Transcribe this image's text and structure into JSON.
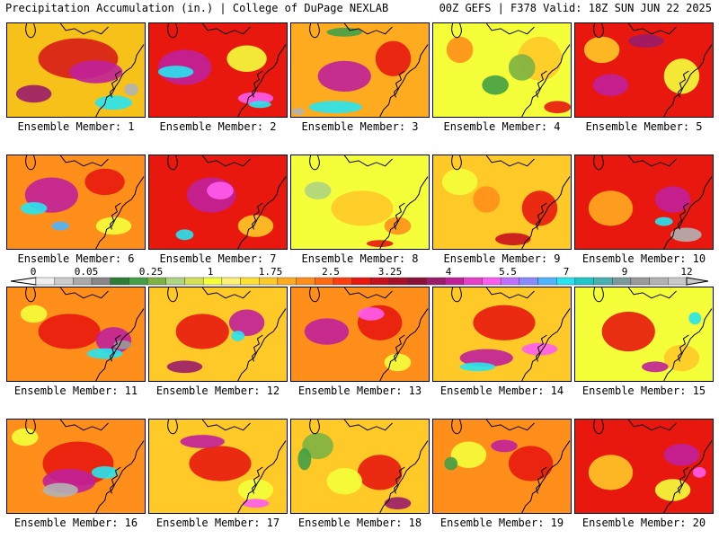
{
  "header": {
    "left": "Precipitation Accumulation (in.) | College of DuPage NEXLAB",
    "right": "00Z GEFS | F378 Valid: 18Z SUN JUN 22 2025"
  },
  "colorbar": {
    "labels": [
      "0",
      "0.05",
      "0.25",
      "1",
      "1.75",
      "2.5",
      "3.25",
      "4",
      "5.5",
      "7",
      "9",
      "12"
    ],
    "colors": [
      "#eeeeee",
      "#cccccc",
      "#aaaaaa",
      "#888888",
      "#2e7d32",
      "#43a047",
      "#7cb342",
      "#aed581",
      "#d4e157",
      "#f4ff3a",
      "#fff176",
      "#ffe033",
      "#ffc928",
      "#ffab1f",
      "#ff8f1a",
      "#ff6a13",
      "#ff3d10",
      "#e8180e",
      "#c8101c",
      "#a8102a",
      "#8a1038",
      "#9a1c6a",
      "#c0209a",
      "#e640c6",
      "#ff5cf0",
      "#c070ff",
      "#8a8aff",
      "#4fb4ff",
      "#27e4f0",
      "#1fc8c8",
      "#47b0b0",
      "#7a9a9a",
      "#9a9a9a",
      "#b2b2b2",
      "#c8c8c8"
    ]
  },
  "members": [
    {
      "caption": "Ensemble Member: 1",
      "base": "#f6c21a",
      "blobs": [
        [
          "#d81c18",
          80,
          40,
          90,
          46
        ],
        [
          "#c0209a",
          100,
          55,
          60,
          26
        ],
        [
          "#27e4f0",
          120,
          90,
          42,
          16
        ],
        [
          "#b2b2b2",
          140,
          75,
          16,
          14
        ],
        [
          "#9a1c6a",
          30,
          80,
          40,
          20
        ]
      ]
    },
    {
      "caption": "Ensemble Member: 2",
      "base": "#e8180e",
      "blobs": [
        [
          "#c0209a",
          40,
          50,
          60,
          40
        ],
        [
          "#27e4f0",
          30,
          55,
          40,
          14
        ],
        [
          "#f4ff3a",
          110,
          40,
          45,
          30
        ],
        [
          "#ff5cf0",
          120,
          85,
          40,
          14
        ],
        [
          "#27e4f0",
          125,
          92,
          25,
          8
        ]
      ]
    },
    {
      "caption": "Ensemble Member: 3",
      "base": "#ffab1f",
      "blobs": [
        [
          "#c0209a",
          60,
          60,
          60,
          35
        ],
        [
          "#27e4f0",
          50,
          95,
          60,
          14
        ],
        [
          "#43a047",
          60,
          10,
          40,
          10
        ],
        [
          "#e8180e",
          115,
          40,
          40,
          40
        ],
        [
          "#b2b2b2",
          8,
          100,
          14,
          8
        ]
      ]
    },
    {
      "caption": "Ensemble Member: 4",
      "base": "#f4ff3a",
      "blobs": [
        [
          "#ffc928",
          120,
          40,
          50,
          50
        ],
        [
          "#43a047",
          70,
          70,
          30,
          22
        ],
        [
          "#7cb342",
          100,
          50,
          30,
          30
        ],
        [
          "#ff8f1a",
          30,
          30,
          30,
          30
        ],
        [
          "#e8180e",
          140,
          95,
          30,
          14
        ]
      ]
    },
    {
      "caption": "Ensemble Member: 5",
      "base": "#e8180e",
      "blobs": [
        [
          "#ffc928",
          30,
          30,
          40,
          30
        ],
        [
          "#f4ff3a",
          120,
          60,
          40,
          40
        ],
        [
          "#c0209a",
          40,
          70,
          40,
          25
        ],
        [
          "#9a1c6a",
          80,
          20,
          40,
          15
        ]
      ]
    },
    {
      "caption": "Ensemble Member: 6",
      "base": "#ff8f1a",
      "blobs": [
        [
          "#c0209a",
          50,
          45,
          60,
          40
        ],
        [
          "#27e4f0",
          30,
          60,
          30,
          14
        ],
        [
          "#e8180e",
          110,
          30,
          45,
          30
        ],
        [
          "#f4ff3a",
          120,
          80,
          40,
          20
        ],
        [
          "#4fb4ff",
          60,
          80,
          20,
          10
        ]
      ]
    },
    {
      "caption": "Ensemble Member: 7",
      "base": "#e8180e",
      "blobs": [
        [
          "#c0209a",
          70,
          45,
          55,
          40
        ],
        [
          "#ff5cf0",
          80,
          40,
          30,
          20
        ],
        [
          "#ffc928",
          120,
          80,
          40,
          25
        ],
        [
          "#27e4f0",
          40,
          90,
          20,
          12
        ]
      ]
    },
    {
      "caption": "Ensemble Member: 8",
      "base": "#f4ff3a",
      "blobs": [
        [
          "#ffc928",
          80,
          60,
          70,
          40
        ],
        [
          "#ff8f1a",
          120,
          80,
          30,
          20
        ],
        [
          "#aed581",
          30,
          40,
          30,
          20
        ],
        [
          "#e8180e",
          100,
          100,
          30,
          8
        ]
      ]
    },
    {
      "caption": "Ensemble Member: 9",
      "base": "#ffc928",
      "blobs": [
        [
          "#f4ff3a",
          30,
          30,
          40,
          30
        ],
        [
          "#e8180e",
          120,
          60,
          40,
          40
        ],
        [
          "#c8101c",
          90,
          95,
          40,
          14
        ],
        [
          "#ff8f1a",
          60,
          50,
          30,
          30
        ]
      ]
    },
    {
      "caption": "Ensemble Member: 10",
      "base": "#e8180e",
      "blobs": [
        [
          "#ffab1f",
          40,
          60,
          50,
          40
        ],
        [
          "#c0209a",
          110,
          50,
          40,
          30
        ],
        [
          "#b2b2b2",
          125,
          90,
          35,
          16
        ],
        [
          "#27e4f0",
          100,
          75,
          20,
          10
        ]
      ]
    },
    {
      "caption": "Ensemble Member: 11",
      "base": "#ff8f1a",
      "blobs": [
        [
          "#e8180e",
          70,
          50,
          70,
          40
        ],
        [
          "#c0209a",
          120,
          60,
          40,
          30
        ],
        [
          "#27e4f0",
          110,
          75,
          40,
          12
        ],
        [
          "#9a9a9a",
          130,
          65,
          20,
          10
        ],
        [
          "#f4ff3a",
          30,
          30,
          30,
          20
        ]
      ]
    },
    {
      "caption": "Ensemble Member: 12",
      "base": "#ffc928",
      "blobs": [
        [
          "#e8180e",
          60,
          50,
          60,
          40
        ],
        [
          "#c0209a",
          110,
          40,
          40,
          30
        ],
        [
          "#27e4f0",
          100,
          55,
          15,
          12
        ],
        [
          "#9a1c6a",
          40,
          90,
          40,
          14
        ]
      ]
    },
    {
      "caption": "Ensemble Member: 13",
      "base": "#ff8f1a",
      "blobs": [
        [
          "#c0209a",
          40,
          50,
          50,
          30
        ],
        [
          "#e8180e",
          100,
          40,
          50,
          40
        ],
        [
          "#ff5cf0",
          90,
          30,
          30,
          15
        ],
        [
          "#f4ff3a",
          120,
          85,
          30,
          20
        ]
      ]
    },
    {
      "caption": "Ensemble Member: 14",
      "base": "#ffc928",
      "blobs": [
        [
          "#e8180e",
          80,
          40,
          70,
          40
        ],
        [
          "#c0209a",
          60,
          80,
          60,
          20
        ],
        [
          "#27e4f0",
          50,
          90,
          40,
          10
        ],
        [
          "#ff5cf0",
          120,
          70,
          40,
          14
        ]
      ]
    },
    {
      "caption": "Ensemble Member: 15",
      "base": "#f4ff3a",
      "blobs": [
        [
          "#e8180e",
          60,
          50,
          60,
          45
        ],
        [
          "#ffc928",
          120,
          80,
          40,
          30
        ],
        [
          "#27e4f0",
          135,
          35,
          14,
          14
        ],
        [
          "#c0209a",
          90,
          90,
          30,
          12
        ]
      ]
    },
    {
      "caption": "Ensemble Member: 16",
      "base": "#ff8f1a",
      "blobs": [
        [
          "#e8180e",
          80,
          50,
          80,
          50
        ],
        [
          "#c0209a",
          70,
          70,
          60,
          28
        ],
        [
          "#b2b2b2",
          60,
          80,
          40,
          16
        ],
        [
          "#27e4f0",
          110,
          60,
          30,
          14
        ],
        [
          "#f4ff3a",
          20,
          20,
          30,
          20
        ]
      ]
    },
    {
      "caption": "Ensemble Member: 17",
      "base": "#ffc928",
      "blobs": [
        [
          "#e8180e",
          80,
          50,
          70,
          40
        ],
        [
          "#c0209a",
          60,
          25,
          50,
          15
        ],
        [
          "#f4ff3a",
          120,
          80,
          40,
          25
        ],
        [
          "#ff5cf0",
          120,
          95,
          30,
          10
        ]
      ]
    },
    {
      "caption": "Ensemble Member: 18",
      "base": "#ffc928",
      "blobs": [
        [
          "#7cb342",
          30,
          30,
          35,
          30
        ],
        [
          "#43a047",
          15,
          45,
          15,
          25
        ],
        [
          "#e8180e",
          100,
          60,
          50,
          40
        ],
        [
          "#f4ff3a",
          60,
          70,
          40,
          30
        ],
        [
          "#9a1c6a",
          120,
          95,
          30,
          14
        ]
      ]
    },
    {
      "caption": "Ensemble Member: 19",
      "base": "#ff8f1a",
      "blobs": [
        [
          "#f4ff3a",
          40,
          40,
          40,
          30
        ],
        [
          "#43a047",
          20,
          50,
          15,
          15
        ],
        [
          "#e8180e",
          110,
          50,
          50,
          40
        ],
        [
          "#c0209a",
          80,
          30,
          30,
          14
        ]
      ]
    },
    {
      "caption": "Ensemble Member: 20",
      "base": "#e8180e",
      "blobs": [
        [
          "#ffc928",
          40,
          60,
          50,
          40
        ],
        [
          "#c0209a",
          120,
          40,
          40,
          25
        ],
        [
          "#f4ff3a",
          110,
          80,
          40,
          25
        ],
        [
          "#ff5cf0",
          140,
          60,
          15,
          12
        ]
      ]
    }
  ]
}
